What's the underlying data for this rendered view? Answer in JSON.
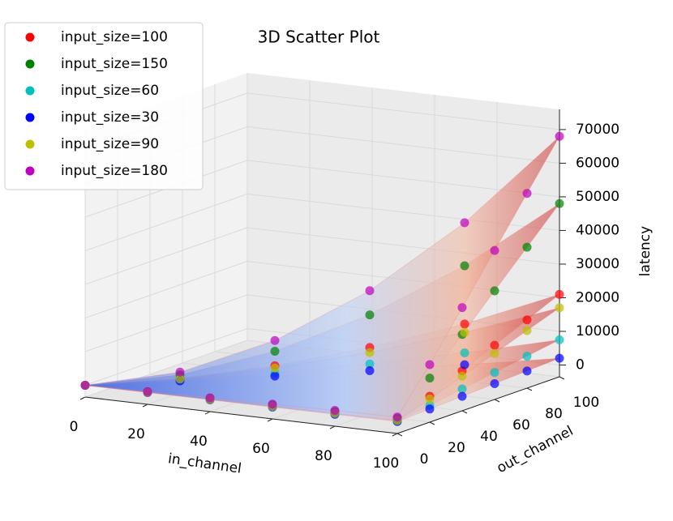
{
  "chart_data": {
    "type": "scatter3d",
    "title": "3D Scatter Plot",
    "x_label": "in_channel",
    "y_label": "out_channel",
    "z_label": "latency",
    "xlim": [
      0,
      100
    ],
    "ylim": [
      0,
      100
    ],
    "zlim": [
      -3500,
      76000
    ],
    "xticks": [
      0,
      20,
      40,
      60,
      80,
      100
    ],
    "yticks": [
      0,
      20,
      40,
      60,
      80,
      100
    ],
    "zticks": [
      0,
      10000,
      20000,
      30000,
      40000,
      50000,
      60000,
      70000
    ],
    "x": [
      0,
      20,
      40,
      60,
      80,
      100,
      100,
      100,
      100,
      100,
      100,
      20,
      40,
      60,
      80
    ],
    "y": [
      0,
      0,
      0,
      0,
      0,
      0,
      20,
      40,
      60,
      80,
      100,
      20,
      40,
      60,
      80
    ],
    "series": [
      {
        "name": "input_size=100",
        "color": "#ff0000",
        "values": [
          0,
          100,
          200,
          300,
          400,
          500,
          4200,
          8400,
          12600,
          16800,
          21000,
          800,
          3400,
          7600,
          13400
        ]
      },
      {
        "name": "input_size=150",
        "color": "#008000",
        "values": [
          0,
          200,
          400,
          600,
          800,
          1000,
          9600,
          19200,
          28800,
          38400,
          48000,
          1900,
          7700,
          17300,
          30700
        ]
      },
      {
        "name": "input_size=60",
        "color": "#00bfbf",
        "values": [
          0,
          40,
          80,
          120,
          160,
          200,
          1500,
          3000,
          4500,
          6000,
          7500,
          300,
          1200,
          2700,
          4800
        ]
      },
      {
        "name": "input_size=30",
        "color": "#0000ff",
        "values": [
          0,
          10,
          20,
          30,
          40,
          50,
          400,
          800,
          1200,
          1600,
          2000,
          80,
          320,
          720,
          1280
        ]
      },
      {
        "name": "input_size=90",
        "color": "#bfbf00",
        "values": [
          0,
          80,
          160,
          240,
          320,
          400,
          3400,
          6800,
          10200,
          13600,
          17000,
          700,
          2700,
          6100,
          10900
        ]
      },
      {
        "name": "input_size=180",
        "color": "#bf00bf",
        "values": [
          0,
          300,
          600,
          900,
          1200,
          1400,
          13600,
          27200,
          40800,
          54400,
          68000,
          2700,
          10900,
          24500,
          43500
        ]
      }
    ]
  }
}
